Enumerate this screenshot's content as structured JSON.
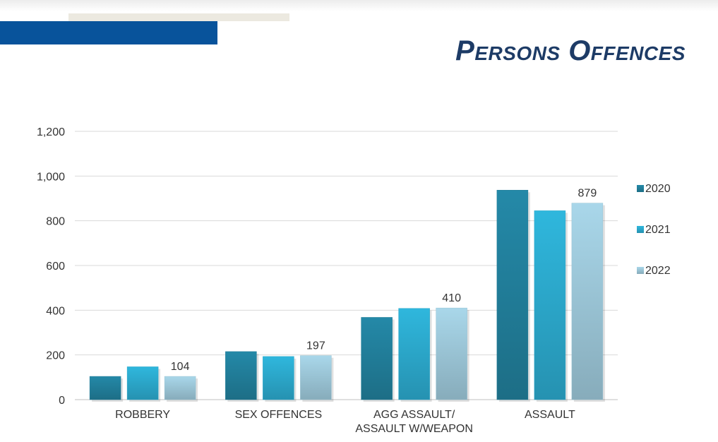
{
  "slide": {
    "title": "Persons Offences"
  },
  "chart_data": {
    "type": "bar",
    "categories": [
      "ROBBERY",
      "SEX OFFENCES",
      "AGG ASSAULT/ ASSAULT W/WEAPON",
      "ASSAULT"
    ],
    "category_lines": [
      [
        "ROBBERY"
      ],
      [
        "SEX OFFENCES"
      ],
      [
        "AGG ASSAULT/",
        "ASSAULT W/WEAPON"
      ],
      [
        "ASSAULT"
      ]
    ],
    "series": [
      {
        "name": "2020",
        "values": [
          104,
          215,
          368,
          937
        ],
        "color": "#2489a8"
      },
      {
        "name": "2021",
        "values": [
          147,
          193,
          408,
          845
        ],
        "color": "#2fb7dd"
      },
      {
        "name": "2022",
        "values": [
          104,
          197,
          410,
          879
        ],
        "color": "#a9d7ea",
        "data_labels": true
      }
    ],
    "ylim": [
      0,
      1200
    ],
    "yticks": [
      0,
      200,
      400,
      600,
      800,
      1000,
      1200
    ],
    "ytick_labels": [
      "0",
      "200",
      "400",
      "600",
      "800",
      "1,000",
      "1,200"
    ],
    "grid": true,
    "legend": "right",
    "xlabel": "",
    "ylabel": ""
  }
}
